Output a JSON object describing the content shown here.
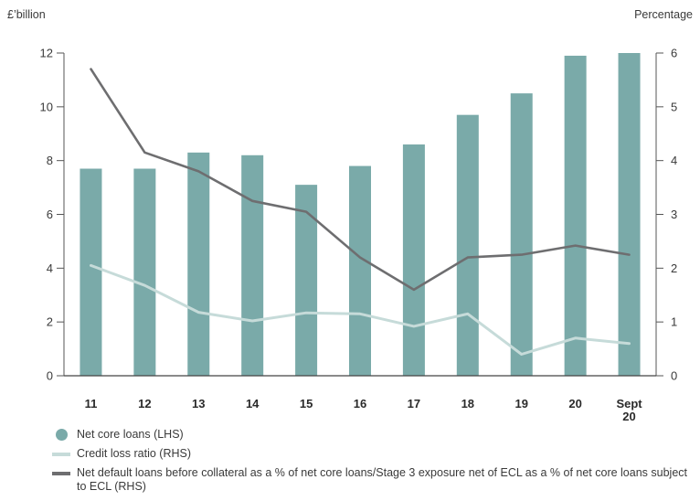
{
  "chart_data": {
    "type": "bar",
    "categories": [
      "11",
      "12",
      "13",
      "14",
      "15",
      "16",
      "17",
      "18",
      "19",
      "20",
      "Sept\n20"
    ],
    "left_axis": {
      "label": "£’billion",
      "ylim": [
        0,
        12
      ],
      "ticks": [
        0,
        2,
        4,
        6,
        8,
        10,
        12
      ]
    },
    "right_axis": {
      "label": "Percentage",
      "ylim": [
        0,
        6
      ],
      "ticks": [
        0,
        1,
        2,
        3,
        4,
        5,
        6
      ]
    },
    "grid": false,
    "series": [
      {
        "name": "Net core loans (LHS)",
        "kind": "bar",
        "axis": "left",
        "color": "#7aaaa9",
        "values": [
          7.7,
          7.7,
          8.3,
          8.2,
          7.1,
          7.8,
          8.6,
          9.7,
          10.5,
          11.9,
          12.0
        ]
      },
      {
        "name": "Credit loss ratio (RHS)",
        "kind": "line",
        "axis": "right",
        "color": "#c6dbd9",
        "values": [
          2.05,
          1.68,
          1.18,
          1.02,
          1.17,
          1.15,
          0.92,
          1.15,
          0.4,
          0.7,
          0.6
        ]
      },
      {
        "name": "Net default loans before collateral as a % of net core loans/Stage 3 exposure net of ECL as a % of net core loans subject to ECL (RHS)",
        "kind": "line",
        "axis": "right",
        "color": "#6e6e70",
        "values": [
          5.7,
          4.15,
          3.8,
          3.25,
          3.05,
          2.2,
          1.6,
          2.2,
          2.25,
          2.42,
          2.25
        ]
      }
    ],
    "legend_position": "bottom-left"
  }
}
